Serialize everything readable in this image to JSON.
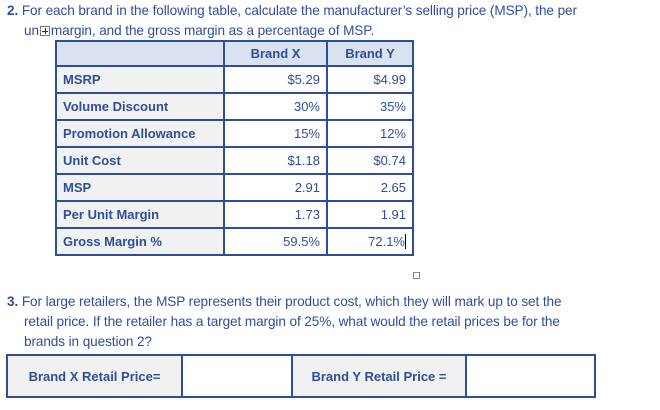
{
  "question2": {
    "number": "2.",
    "line1": "For each brand in the following table, calculate the manufacturer’s selling price (MSP), the per",
    "line2_pre": "un",
    "line2_post": "margin, and the gross margin as a percentage of MSP."
  },
  "main_table": {
    "headers": [
      "",
      "Brand X",
      "Brand Y"
    ],
    "rows": [
      {
        "label": "MSRP",
        "brand_x": "$5.29",
        "brand_y": "$4.99"
      },
      {
        "label": "Volume Discount",
        "brand_x": "30%",
        "brand_y": "35%"
      },
      {
        "label": "Promotion Allowance",
        "brand_x": "15%",
        "brand_y": "12%"
      },
      {
        "label": "Unit Cost",
        "brand_x": "$1.18",
        "brand_y": "$0.74"
      },
      {
        "label": "MSP",
        "brand_x": "2.91",
        "brand_y": "2.65"
      },
      {
        "label": "Per Unit Margin",
        "brand_x": "1.73",
        "brand_y": "1.91"
      },
      {
        "label": "Gross Margin %",
        "brand_x": "59.5%",
        "brand_y": "72.1%"
      }
    ]
  },
  "question3": {
    "number": "3.",
    "line1": "For large retailers, the MSP represents their product cost, which they will mark up to set the",
    "line2": "retail price. If the retailer has a target margin of 25%, what would the retail prices be for the",
    "line3": "brands in question 2?"
  },
  "retail_table": {
    "brand_x_label": "Brand X Retail Price=",
    "brand_x_value": "",
    "brand_y_label": "Brand Y Retail Price =",
    "brand_y_value": ""
  },
  "colors": {
    "text_blue": "#2f4e99",
    "header_fill": "#d9e2f3",
    "label_fill": "#f1f1f1"
  }
}
